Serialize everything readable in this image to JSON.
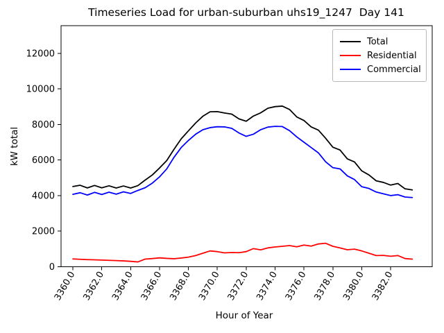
{
  "chart_data": {
    "type": "line",
    "title": "Timeseries Load for urban-suburban uhs19_1247  Day 141",
    "xlabel": "Hour of Year",
    "ylabel": "kW total",
    "grid": false,
    "legend_position": "upper right",
    "xlim": [
      3359.18,
      3384.88
    ],
    "ylim": [
      0,
      13550
    ],
    "xticks": [
      3360,
      3362,
      3364,
      3366,
      3368,
      3370,
      3372,
      3374,
      3376,
      3378,
      3380,
      3382
    ],
    "xtick_labels": [
      "3360.0",
      "3362.0",
      "3364.0",
      "3366.0",
      "3368.0",
      "3370.0",
      "3372.0",
      "3374.0",
      "3376.0",
      "3378.0",
      "3380.0",
      "3382.0"
    ],
    "yticks": [
      0,
      2000,
      4000,
      6000,
      8000,
      10000,
      12000
    ],
    "ytick_labels": [
      "0",
      "2000",
      "4000",
      "6000",
      "8000",
      "10000",
      "12000"
    ],
    "x": [
      3360.0,
      3360.5,
      3361.0,
      3361.5,
      3362.0,
      3362.5,
      3363.0,
      3363.5,
      3364.0,
      3364.5,
      3365.0,
      3365.5,
      3366.0,
      3366.5,
      3367.0,
      3367.5,
      3368.0,
      3368.5,
      3369.0,
      3369.5,
      3370.0,
      3370.5,
      3371.0,
      3371.5,
      3372.0,
      3372.5,
      3373.0,
      3373.5,
      3374.0,
      3374.5,
      3375.0,
      3375.5,
      3376.0,
      3376.5,
      3377.0,
      3377.5,
      3378.0,
      3378.5,
      3379.0,
      3379.5,
      3380.0,
      3380.5,
      3381.0,
      3381.5,
      3382.0,
      3382.5,
      3383.0,
      3383.5
    ],
    "series": [
      {
        "name": "Total",
        "color": "#000000",
        "values": [
          4510,
          4580,
          4430,
          4570,
          4435,
          4550,
          4425,
          4540,
          4425,
          4560,
          4870,
          5160,
          5550,
          5970,
          6600,
          7190,
          7640,
          8080,
          8460,
          8710,
          8720,
          8640,
          8580,
          8310,
          8180,
          8470,
          8650,
          8910,
          9000,
          9030,
          8840,
          8420,
          8220,
          7860,
          7680,
          7220,
          6720,
          6560,
          6065,
          5890,
          5390,
          5160,
          4830,
          4740,
          4590,
          4680,
          4380,
          4320
        ]
      },
      {
        "name": "Residential",
        "color": "#ff0000",
        "values": [
          440,
          420,
          400,
          390,
          375,
          360,
          345,
          330,
          305,
          270,
          430,
          460,
          500,
          470,
          450,
          490,
          540,
          630,
          760,
          890,
          850,
          780,
          800,
          790,
          850,
          1020,
          950,
          1060,
          1110,
          1150,
          1190,
          1120,
          1220,
          1160,
          1280,
          1320,
          1150,
          1060,
          955,
          990,
          890,
          760,
          630,
          640,
          590,
          630,
          460,
          430
        ]
      },
      {
        "name": "Commercial",
        "color": "#0000ff",
        "values": [
          4070,
          4160,
          4030,
          4180,
          4060,
          4190,
          4080,
          4210,
          4120,
          4290,
          4440,
          4700,
          5050,
          5500,
          6150,
          6700,
          7100,
          7450,
          7700,
          7820,
          7870,
          7860,
          7780,
          7520,
          7330,
          7450,
          7700,
          7850,
          7890,
          7880,
          7650,
          7300,
          7000,
          6700,
          6400,
          5900,
          5570,
          5500,
          5110,
          4900,
          4500,
          4400,
          4200,
          4100,
          4000,
          4050,
          3920,
          3890
        ]
      }
    ]
  }
}
